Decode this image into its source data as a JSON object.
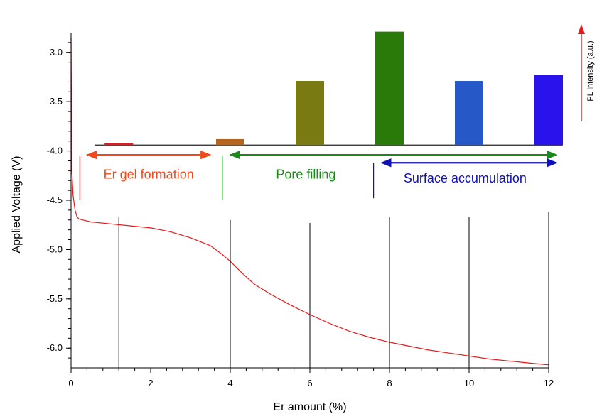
{
  "chart_data": {
    "type": "line",
    "xlabel": "Er amount (%)",
    "ylabel": "Applied Voltage (V)",
    "right_label": "PL intensity (a.u.)",
    "xlim": [
      0,
      12
    ],
    "ylim": [
      -6.2,
      -2.8
    ],
    "x_ticks": [
      0,
      2,
      4,
      6,
      8,
      10,
      12
    ],
    "x_tick_labels": [
      "0",
      "2",
      "4",
      "6",
      "8",
      "10",
      "12"
    ],
    "y_ticks": [
      -3.0,
      -3.5,
      -4.0,
      -4.5,
      -5.0,
      -5.5,
      -6.0
    ],
    "y_tick_labels": [
      "-3.0",
      "-3.5",
      "-4.0",
      "-4.5",
      "-5.0",
      "-5.5",
      "-6.0"
    ],
    "grid": false,
    "series": [
      {
        "color": "#e8191b",
        "x": [
          0.0,
          0.02,
          0.05,
          0.1,
          0.15,
          0.2,
          0.3,
          0.5,
          1.0,
          1.5,
          2.0,
          2.5,
          3.0,
          3.5,
          3.8,
          4.0,
          4.3,
          4.6,
          5.0,
          5.5,
          6.0,
          6.5,
          7.0,
          7.5,
          8.0,
          8.5,
          9.0,
          9.5,
          10.0,
          10.5,
          11.0,
          11.5,
          12.0
        ],
        "y": [
          -2.85,
          -4.2,
          -4.45,
          -4.6,
          -4.67,
          -4.69,
          -4.7,
          -4.72,
          -4.74,
          -4.76,
          -4.78,
          -4.82,
          -4.88,
          -4.96,
          -5.05,
          -5.12,
          -5.24,
          -5.35,
          -5.45,
          -5.56,
          -5.66,
          -5.75,
          -5.83,
          -5.89,
          -5.94,
          -5.98,
          -6.02,
          -6.05,
          -6.08,
          -6.11,
          -6.13,
          -6.15,
          -6.17
        ]
      }
    ],
    "vertical_markers": [
      {
        "x": 1.2,
        "y_top": -4.67
      },
      {
        "x": 4.0,
        "y_top": -4.7
      },
      {
        "x": 6.0,
        "y_top": -4.73
      },
      {
        "x": 8.0,
        "y_top": -4.67
      },
      {
        "x": 10.0,
        "y_top": -4.67
      },
      {
        "x": 12.0,
        "y_top": -4.62
      }
    ],
    "pl_bars": {
      "baseline": -3.94,
      "bars": [
        {
          "x": 1.2,
          "top": -3.92,
          "color": "#e31a1c"
        },
        {
          "x": 4.0,
          "top": -3.88,
          "color": "#b5651d"
        },
        {
          "x": 6.0,
          "top": -3.29,
          "color": "#7a7a12"
        },
        {
          "x": 8.0,
          "top": -2.79,
          "color": "#2a7a0a"
        },
        {
          "x": 10.0,
          "top": -3.29,
          "color": "#2658c8"
        },
        {
          "x": 12.0,
          "top": -3.23,
          "color": "#2a12ec"
        }
      ]
    },
    "regions": [
      {
        "label": "Er gel formation",
        "color": "#f04a1c",
        "x_start": 0.4,
        "x_end": 3.5,
        "y_arrow": -4.04,
        "y_text": -4.28
      },
      {
        "label": "Pore filling",
        "color": "#1a8a1a",
        "x_start": 4.0,
        "x_end": 12.2,
        "y_arrow": -4.04,
        "y_text": -4.28
      },
      {
        "label": "Surface accumulation",
        "color": "#1010b8",
        "x_start": 7.8,
        "x_end": 12.2,
        "y_arrow": -4.12,
        "y_text": -4.32
      }
    ],
    "region_dividers": [
      {
        "x": 0.22,
        "y_from": -4.05,
        "y_to": -4.5,
        "color": "#e8191b"
      },
      {
        "x": 3.8,
        "y_from": -4.05,
        "y_to": -4.5,
        "color": "#1a8a1a"
      },
      {
        "x": 7.6,
        "y_from": -4.12,
        "y_to": -4.48,
        "color": "#1010b8"
      }
    ]
  }
}
